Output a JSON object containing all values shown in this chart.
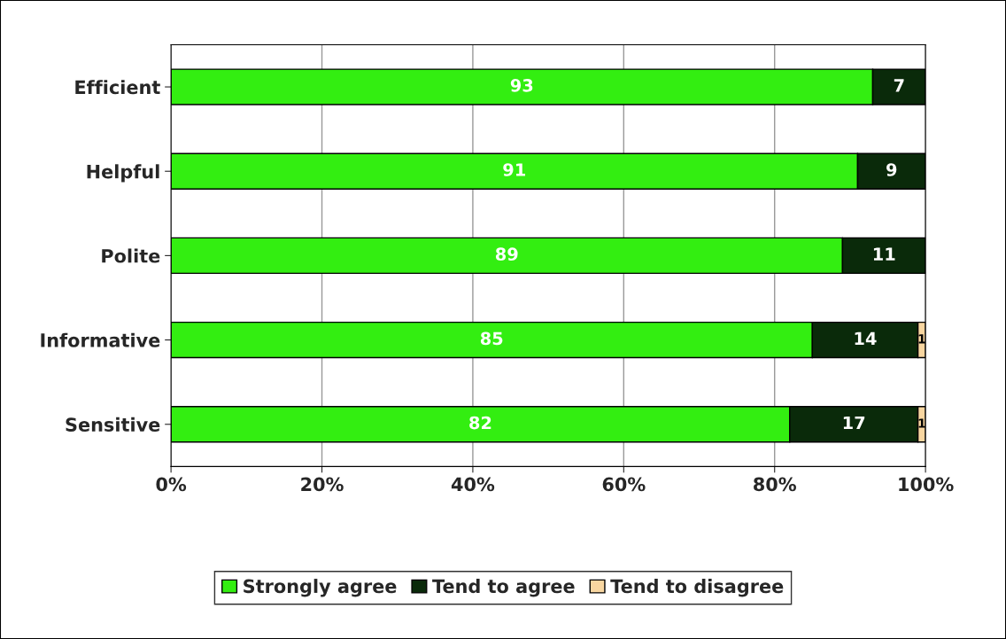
{
  "chart_data": {
    "type": "bar",
    "orientation": "horizontal",
    "stacked": true,
    "categories": [
      "Efficient",
      "Helpful",
      "Polite",
      "Informative",
      "Sensitive"
    ],
    "series": [
      {
        "name": "Strongly agree",
        "color": "#33ee11",
        "values": [
          93,
          91,
          89,
          85,
          82
        ]
      },
      {
        "name": "Tend to agree",
        "color": "#0a2a0a",
        "values": [
          7,
          9,
          11,
          14,
          17
        ]
      },
      {
        "name": "Tend to disagree",
        "color": "#f8d6a0",
        "values": [
          null,
          null,
          null,
          1,
          1
        ]
      }
    ],
    "xlim": [
      0,
      100
    ],
    "xticks": [
      {
        "value": 0,
        "label": "0%"
      },
      {
        "value": 20,
        "label": "20%"
      },
      {
        "value": 40,
        "label": "40%"
      },
      {
        "value": 60,
        "label": "60%"
      },
      {
        "value": 80,
        "label": "80%"
      },
      {
        "value": 100,
        "label": "100%"
      }
    ],
    "grid": "x",
    "legend": "bottom",
    "data_labels": true
  }
}
